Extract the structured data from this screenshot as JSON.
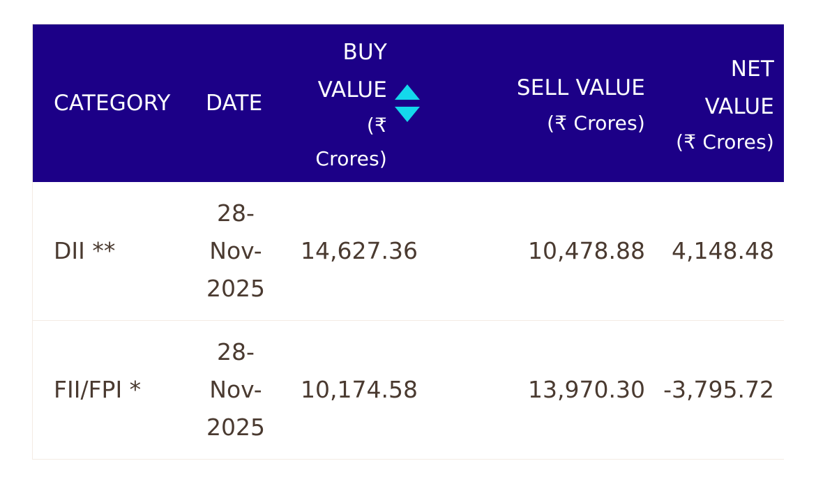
{
  "table": {
    "headers": {
      "category": "CATEGORY",
      "date": "DATE",
      "buy_value": [
        "BUY",
        "VALUE"
      ],
      "buy_sub": [
        "(₹",
        "Crores)"
      ],
      "sell_value": "SELL VALUE",
      "sell_sub": "(₹ Crores)",
      "net_value": [
        "NET",
        "VALUE"
      ],
      "net_sub": "(₹ Crores)"
    },
    "rows": [
      {
        "category": "DII **",
        "date": [
          "28-",
          "Nov-",
          "2025"
        ],
        "buy": "14,627.36",
        "sell": "10,478.88",
        "net": "4,148.48"
      },
      {
        "category": "FII/FPI *",
        "date": [
          "28-",
          "Nov-",
          "2025"
        ],
        "buy": "10,174.58",
        "sell": "13,970.30",
        "net": "-3,795.72"
      }
    ]
  },
  "colors": {
    "header_bg": "#1c0087",
    "sort_arrow": "#14d8ec",
    "body_text": "#4a3a30"
  },
  "icons": {
    "sort": "sort-up-down-icon"
  }
}
